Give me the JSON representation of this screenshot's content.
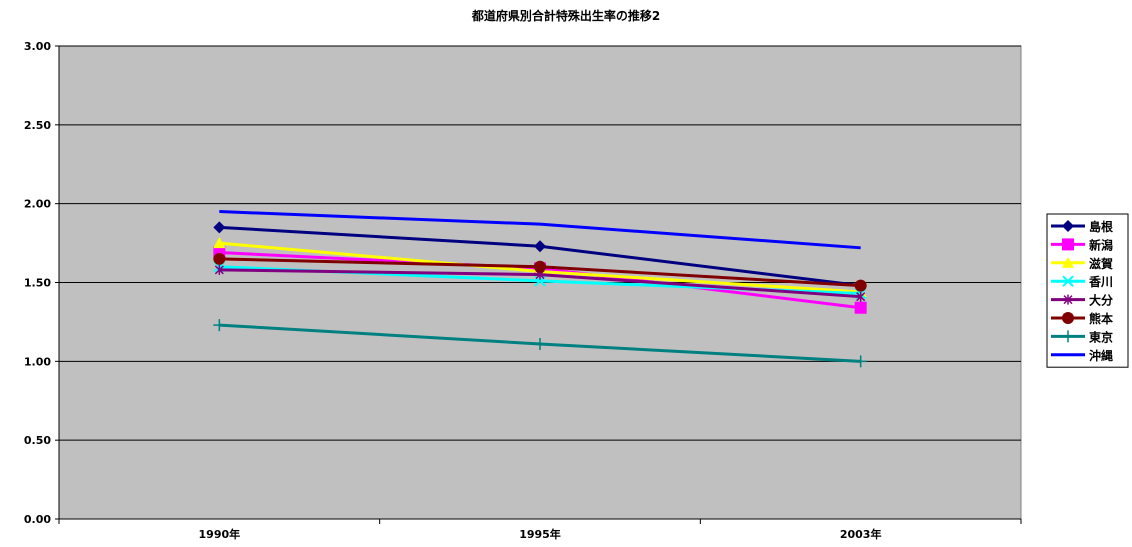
{
  "chart_data": {
    "type": "line",
    "title": "都道府県別合計特殊出生率の推移2",
    "xlabel": "",
    "ylabel": "",
    "categories": [
      "1990年",
      "1995年",
      "2003年"
    ],
    "ylim": [
      0,
      3
    ],
    "yticks": [
      "0.00",
      "0.50",
      "1.00",
      "1.50",
      "2.00",
      "2.50",
      "3.00"
    ],
    "ytick_values": [
      0,
      0.5,
      1.0,
      1.5,
      2.0,
      2.5,
      3.0
    ],
    "grid": "horizontal",
    "plot_background": "#C0C0C0",
    "legend_position": "right",
    "series": [
      {
        "name": "島根",
        "values": [
          1.85,
          1.73,
          1.48
        ],
        "color": "#000080",
        "marker": "diamond"
      },
      {
        "name": "新潟",
        "values": [
          1.69,
          1.59,
          1.34
        ],
        "color": "#FF00FF",
        "marker": "square"
      },
      {
        "name": "滋賀",
        "values": [
          1.75,
          1.57,
          1.44
        ],
        "color": "#FFFF00",
        "marker": "triangle"
      },
      {
        "name": "香川",
        "values": [
          1.6,
          1.51,
          1.43
        ],
        "color": "#00FFFF",
        "marker": "x"
      },
      {
        "name": "大分",
        "values": [
          1.58,
          1.55,
          1.41
        ],
        "color": "#800080",
        "marker": "star"
      },
      {
        "name": "熊本",
        "values": [
          1.65,
          1.6,
          1.48
        ],
        "color": "#800000",
        "marker": "circle"
      },
      {
        "name": "東京",
        "values": [
          1.23,
          1.11,
          1.0
        ],
        "color": "#008080",
        "marker": "plus"
      },
      {
        "name": "沖縄",
        "values": [
          1.95,
          1.87,
          1.72
        ],
        "color": "#0000FF",
        "marker": "none"
      }
    ]
  }
}
